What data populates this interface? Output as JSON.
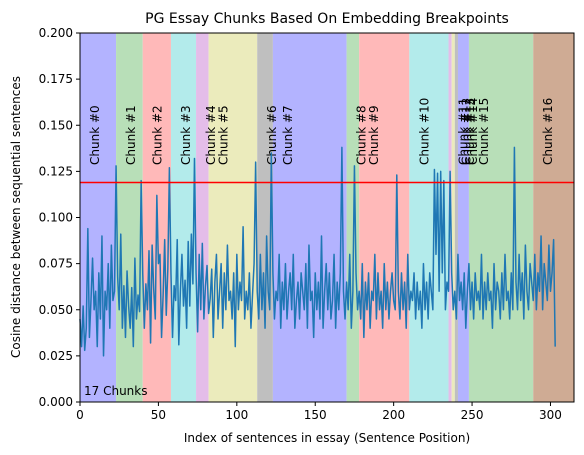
{
  "chart_data": {
    "type": "line",
    "title": "PG Essay Chunks Based On Embedding Breakpoints",
    "xlabel": "Index of sentences in essay (Sentence Position)",
    "ylabel": "Cosine distance between sequential sentences",
    "xlim": [
      0,
      315
    ],
    "ylim": [
      0.0,
      0.2
    ],
    "x_ticks": [
      0,
      50,
      100,
      150,
      200,
      250,
      300
    ],
    "x_tick_labels": [
      "0",
      "50",
      "100",
      "150",
      "200",
      "250",
      "300"
    ],
    "y_ticks": [
      0.0,
      0.025,
      0.05,
      0.075,
      0.1,
      0.125,
      0.15,
      0.175,
      0.2
    ],
    "y_tick_labels": [
      "0.000",
      "0.025",
      "0.050",
      "0.075",
      "0.100",
      "0.125",
      "0.150",
      "0.175",
      "0.200"
    ],
    "grid": false,
    "threshold": {
      "y": 0.119,
      "color": "#ff0000"
    },
    "annotation": "17 Chunks",
    "line_color": "#1f77b4",
    "chunks": [
      {
        "label": "Chunk #0",
        "start": 0,
        "end": 23,
        "color": "#b3b3ff"
      },
      {
        "label": "Chunk #1",
        "start": 23,
        "end": 40,
        "color": "#b8dfb8"
      },
      {
        "label": "Chunk #2",
        "start": 40,
        "end": 58,
        "color": "#ffb9b9"
      },
      {
        "label": "Chunk #3",
        "start": 58,
        "end": 74,
        "color": "#b3ebeb"
      },
      {
        "label": "Chunk #4",
        "start": 74,
        "end": 82,
        "color": "#e4bde9"
      },
      {
        "label": "Chunk #5",
        "start": 82,
        "end": 113,
        "color": "#ebebbc"
      },
      {
        "label": "Chunk #6",
        "start": 113,
        "end": 123,
        "color": "#bfbfbf"
      },
      {
        "label": "Chunk #7",
        "start": 123,
        "end": 170,
        "color": "#b3b3ff"
      },
      {
        "label": "Chunk #8",
        "start": 170,
        "end": 178,
        "color": "#b8dfb8"
      },
      {
        "label": "Chunk #9",
        "start": 178,
        "end": 210,
        "color": "#ffb9b9"
      },
      {
        "label": "Chunk #10",
        "start": 210,
        "end": 235,
        "color": "#b3ebeb"
      },
      {
        "label": "Chunk #11",
        "start": 235,
        "end": 237,
        "color": "#e4bde9"
      },
      {
        "label": "Chunk #12",
        "start": 237,
        "end": 239,
        "color": "#ebebbc"
      },
      {
        "label": "Chunk #13",
        "start": 239,
        "end": 241,
        "color": "#bfbfbf"
      },
      {
        "label": "Chunk #14",
        "start": 241,
        "end": 248,
        "color": "#b3b3ff"
      },
      {
        "label": "Chunk #15",
        "start": 248,
        "end": 289,
        "color": "#b8dfb8"
      },
      {
        "label": "Chunk #16",
        "start": 289,
        "end": 315,
        "color": "#cfab94"
      }
    ],
    "series": [
      {
        "values": [
          0.045,
          0.03,
          0.052,
          0.028,
          0.04,
          0.094,
          0.035,
          0.055,
          0.078,
          0.05,
          0.06,
          0.03,
          0.07,
          0.045,
          0.09,
          0.025,
          0.06,
          0.05,
          0.075,
          0.04,
          0.085,
          0.055,
          0.06,
          0.128,
          0.068,
          0.05,
          0.091,
          0.04,
          0.063,
          0.035,
          0.071,
          0.052,
          0.04,
          0.062,
          0.03,
          0.078,
          0.045,
          0.058,
          0.049,
          0.12,
          0.07,
          0.04,
          0.064,
          0.05,
          0.082,
          0.032,
          0.085,
          0.061,
          0.045,
          0.112,
          0.075,
          0.08,
          0.035,
          0.058,
          0.088,
          0.047,
          0.072,
          0.127,
          0.07,
          0.035,
          0.063,
          0.055,
          0.088,
          0.031,
          0.06,
          0.08,
          0.052,
          0.066,
          0.04,
          0.087,
          0.052,
          0.091,
          0.064,
          0.132,
          0.07,
          0.038,
          0.08,
          0.05,
          0.086,
          0.045,
          0.063,
          0.074,
          0.048,
          0.056,
          0.072,
          0.035,
          0.065,
          0.08,
          0.045,
          0.06,
          0.075,
          0.04,
          0.07,
          0.05,
          0.085,
          0.055,
          0.06,
          0.045,
          0.07,
          0.03,
          0.08,
          0.05,
          0.065,
          0.055,
          0.095,
          0.045,
          0.06,
          0.05,
          0.07,
          0.04,
          0.058,
          0.075,
          0.13,
          0.06,
          0.045,
          0.08,
          0.05,
          0.07,
          0.04,
          0.09,
          0.06,
          0.05,
          0.135,
          0.07,
          0.045,
          0.06,
          0.055,
          0.08,
          0.04,
          0.065,
          0.05,
          0.075,
          0.045,
          0.06,
          0.07,
          0.05,
          0.08,
          0.04,
          0.055,
          0.065,
          0.045,
          0.07,
          0.06,
          0.05,
          0.075,
          0.04,
          0.085,
          0.055,
          0.06,
          0.035,
          0.07,
          0.05,
          0.065,
          0.045,
          0.09,
          0.04,
          0.06,
          0.075,
          0.05,
          0.07,
          0.045,
          0.055,
          0.08,
          0.04,
          0.065,
          0.05,
          0.07,
          0.138,
          0.06,
          0.045,
          0.065,
          0.05,
          0.08,
          0.04,
          0.06,
          0.128,
          0.07,
          0.05,
          0.06,
          0.045,
          0.075,
          0.035,
          0.065,
          0.05,
          0.07,
          0.04,
          0.06,
          0.055,
          0.08,
          0.045,
          0.07,
          0.05,
          0.06,
          0.04,
          0.075,
          0.05,
          0.065,
          0.045,
          0.06,
          0.07,
          0.055,
          0.05,
          0.123,
          0.06,
          0.045,
          0.07,
          0.05,
          0.065,
          0.04,
          0.08,
          0.05,
          0.06,
          0.055,
          0.07,
          0.045,
          0.065,
          0.05,
          0.06,
          0.04,
          0.075,
          0.05,
          0.065,
          0.045,
          0.07,
          0.06,
          0.05,
          0.126,
          0.08,
          0.124,
          0.06,
          0.125,
          0.07,
          0.12,
          0.05,
          0.065,
          0.06,
          0.125,
          0.07,
          0.05,
          0.06,
          0.045,
          0.08,
          0.055,
          0.065,
          0.05,
          0.07,
          0.04,
          0.06,
          0.075,
          0.05,
          0.065,
          0.045,
          0.07,
          0.055,
          0.06,
          0.05,
          0.08,
          0.045,
          0.065,
          0.05,
          0.07,
          0.055,
          0.06,
          0.04,
          0.075,
          0.05,
          0.065,
          0.06,
          0.045,
          0.07,
          0.05,
          0.08,
          0.055,
          0.06,
          0.045,
          0.07,
          0.05,
          0.138,
          0.065,
          0.05,
          0.08,
          0.055,
          0.07,
          0.045,
          0.085,
          0.06,
          0.05,
          0.075,
          0.065,
          0.055,
          0.08,
          0.05,
          0.07,
          0.06,
          0.09,
          0.05,
          0.075,
          0.065,
          0.055,
          0.085,
          0.06,
          0.07,
          0.088,
          0.03
        ]
      }
    ]
  }
}
